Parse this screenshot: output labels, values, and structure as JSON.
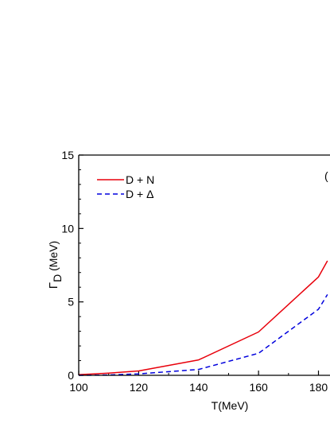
{
  "chart_data": {
    "type": "line",
    "xlabel": "T(MeV)",
    "ylabel_main": "Γ",
    "ylabel_sub": "D",
    "ylabel_unit": " (MeV)",
    "panel_label": "(",
    "xlim": [
      100,
      183
    ],
    "ylim": [
      0,
      15
    ],
    "xticks": [
      100,
      120,
      140,
      160,
      180
    ],
    "yticks": [
      0,
      5,
      10,
      15
    ],
    "grid": false,
    "legend_position": "top-left",
    "series": [
      {
        "name": "D + N",
        "color": "#e8000b",
        "dash": "solid",
        "x": [
          100,
          105,
          110,
          120,
          140,
          160,
          180,
          183
        ],
        "y": [
          0.05,
          0.1,
          0.15,
          0.3,
          1.05,
          2.95,
          6.7,
          7.8
        ]
      },
      {
        "name": "D + Δ",
        "color": "#0000dd",
        "dash": "dashed",
        "x": [
          100,
          110,
          120,
          140,
          160,
          180,
          183
        ],
        "y": [
          0.0,
          0.02,
          0.1,
          0.4,
          1.5,
          4.5,
          5.5
        ]
      }
    ]
  }
}
